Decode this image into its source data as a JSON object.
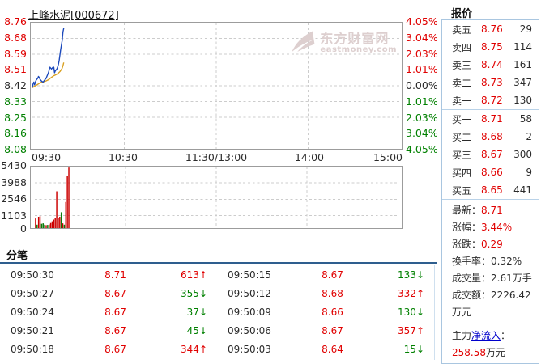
{
  "title": "上峰水泥[000672]",
  "watermark": {
    "line1": "东方财富网",
    "line2": "eastmoney.com"
  },
  "icons": {
    "up_arrow": "↑",
    "down_arrow": "↓",
    "watermark_logo": "eastmoney-swoosh"
  },
  "colors": {
    "up": "#e00000",
    "down": "#008000",
    "flat": "#2b2b2b",
    "price_line": "#1c49bb",
    "avg_line": "#d9a020",
    "bar_up": "#cc0000",
    "bar_down": "#0a7a0a",
    "panel_border": "#a9c6e0",
    "divider": "#2e5e8e",
    "link": "#0000cc",
    "watermark": "#ddcfcf"
  },
  "chart_data": [
    {
      "type": "line",
      "title": "intraday price (分时)",
      "prev_close": 8.42,
      "ylim": [
        8.08,
        8.76
      ],
      "x_total_minutes": 240,
      "x_ticks": [
        "09:30",
        "10:30",
        "11:30/13:00",
        "14:00",
        "15:00"
      ],
      "y_axis": [
        {
          "t": "8.76",
          "c": "up"
        },
        {
          "t": "8.68",
          "c": "up"
        },
        {
          "t": "8.59",
          "c": "up"
        },
        {
          "t": "8.51",
          "c": "up"
        },
        {
          "t": "8.42",
          "c": "flat"
        },
        {
          "t": "8.33",
          "c": "down"
        },
        {
          "t": "8.25",
          "c": "down"
        },
        {
          "t": "8.16",
          "c": "down"
        },
        {
          "t": "8.08",
          "c": "down"
        }
      ],
      "pct_axis": [
        {
          "t": "4.05%",
          "c": "up"
        },
        {
          "t": "3.04%",
          "c": "up"
        },
        {
          "t": "2.03%",
          "c": "up"
        },
        {
          "t": "1.01%",
          "c": "up"
        },
        {
          "t": "0.00%",
          "c": "flat"
        },
        {
          "t": "1.01%",
          "c": "down"
        },
        {
          "t": "2.03%",
          "c": "down"
        },
        {
          "t": "3.04%",
          "c": "down"
        },
        {
          "t": "4.05%",
          "c": "down"
        }
      ],
      "grid": true,
      "series": [
        {
          "name": "avg",
          "color": "#d9a020",
          "points": [
            [
              0,
              8.41
            ],
            [
              1,
              8.415
            ],
            [
              2,
              8.42
            ],
            [
              3,
              8.425
            ],
            [
              4,
              8.43
            ],
            [
              5,
              8.435
            ],
            [
              6,
              8.44
            ],
            [
              7,
              8.44
            ],
            [
              8,
              8.443
            ],
            [
              9,
              8.446
            ],
            [
              10,
              8.45
            ],
            [
              11,
              8.455
            ],
            [
              12,
              8.462
            ],
            [
              13,
              8.468
            ],
            [
              14,
              8.474
            ],
            [
              15,
              8.478
            ],
            [
              16,
              8.482
            ],
            [
              17,
              8.488
            ],
            [
              18,
              8.496
            ],
            [
              19,
              8.508
            ],
            [
              19.5,
              8.515
            ],
            [
              20,
              8.528
            ],
            [
              20.5,
              8.545
            ]
          ]
        },
        {
          "name": "price",
          "color": "#1c49bb",
          "points": [
            [
              0,
              8.41
            ],
            [
              0.5,
              8.43
            ],
            [
              1,
              8.44
            ],
            [
              1.5,
              8.425
            ],
            [
              2,
              8.44
            ],
            [
              2.5,
              8.45
            ],
            [
              3,
              8.455
            ],
            [
              3.5,
              8.46
            ],
            [
              4,
              8.47
            ],
            [
              4.5,
              8.465
            ],
            [
              5,
              8.455
            ],
            [
              5.5,
              8.45
            ],
            [
              6,
              8.445
            ],
            [
              7,
              8.44
            ],
            [
              7.5,
              8.445
            ],
            [
              8,
              8.45
            ],
            [
              8.5,
              8.455
            ],
            [
              9,
              8.46
            ],
            [
              9.5,
              8.47
            ],
            [
              10,
              8.48
            ],
            [
              10.5,
              8.49
            ],
            [
              11,
              8.505
            ],
            [
              11.5,
              8.52
            ],
            [
              12,
              8.515
            ],
            [
              12.5,
              8.51
            ],
            [
              13,
              8.515
            ],
            [
              13.5,
              8.52
            ],
            [
              14,
              8.52
            ],
            [
              14.5,
              8.49
            ],
            [
              15,
              8.5
            ],
            [
              15.5,
              8.505
            ],
            [
              16,
              8.51
            ],
            [
              16.5,
              8.52
            ],
            [
              17,
              8.535
            ],
            [
              17.5,
              8.555
            ],
            [
              18,
              8.585
            ],
            [
              18.5,
              8.615
            ],
            [
              19,
              8.64
            ],
            [
              19.5,
              8.665
            ],
            [
              20,
              8.71
            ],
            [
              20.5,
              8.73
            ]
          ]
        }
      ]
    },
    {
      "type": "bar",
      "title": "volume (手)",
      "ylim": [
        0,
        5430
      ],
      "y_ticks": [
        5430,
        3988,
        2546,
        1103,
        0
      ],
      "x_total_minutes": 240,
      "grid": true,
      "bars": [
        {
          "v": 850,
          "d": "up"
        },
        {
          "v": 300,
          "d": "down"
        },
        {
          "v": 1000,
          "d": "up"
        },
        {
          "v": 1050,
          "d": "up"
        },
        {
          "v": 380,
          "d": "down"
        },
        {
          "v": 420,
          "d": "down"
        },
        {
          "v": 300,
          "d": "down"
        },
        {
          "v": 260,
          "d": "up"
        },
        {
          "v": 280,
          "d": "down"
        },
        {
          "v": 320,
          "d": "up"
        },
        {
          "v": 450,
          "d": "up"
        },
        {
          "v": 600,
          "d": "up"
        },
        {
          "v": 750,
          "d": "up"
        },
        {
          "v": 900,
          "d": "up"
        },
        {
          "v": 3250,
          "d": "up"
        },
        {
          "v": 900,
          "d": "up"
        },
        {
          "v": 1000,
          "d": "up"
        },
        {
          "v": 1400,
          "d": "down"
        },
        {
          "v": 420,
          "d": "up"
        },
        {
          "v": 300,
          "d": "down"
        },
        {
          "v": 2300,
          "d": "up"
        },
        {
          "v": 4600,
          "d": "up"
        },
        {
          "v": 5350,
          "d": "up"
        }
      ]
    }
  ],
  "quote_panel": {
    "title": "报价",
    "asks": [
      {
        "label": "卖五",
        "price": "8.76",
        "vol": "29"
      },
      {
        "label": "卖四",
        "price": "8.75",
        "vol": "114"
      },
      {
        "label": "卖三",
        "price": "8.74",
        "vol": "161"
      },
      {
        "label": "卖二",
        "price": "8.73",
        "vol": "347"
      },
      {
        "label": "卖一",
        "price": "8.72",
        "vol": "130"
      }
    ],
    "bids": [
      {
        "label": "买一",
        "price": "8.71",
        "vol": "58"
      },
      {
        "label": "买二",
        "price": "8.68",
        "vol": "2"
      },
      {
        "label": "买三",
        "price": "8.67",
        "vol": "300"
      },
      {
        "label": "买四",
        "price": "8.66",
        "vol": "9"
      },
      {
        "label": "买五",
        "price": "8.65",
        "vol": "441"
      }
    ],
    "stats": [
      {
        "label": "最新：",
        "value": "8.71",
        "value_color": "up"
      },
      {
        "label": "涨幅：",
        "value": "3.44%",
        "value_color": "up"
      },
      {
        "label": "涨跌：",
        "value": "0.29",
        "value_color": "up"
      },
      {
        "label": "换手率：",
        "value": "0.32%",
        "value_color": "flat"
      },
      {
        "label": "成交量：",
        "value": "2.61万手",
        "value_color": "flat"
      },
      {
        "label": "成交额：",
        "value": "2226.42万元",
        "value_color": "flat"
      }
    ],
    "main_flow": {
      "prefix": "主力",
      "link": "净流入",
      "suffix": "：",
      "value": "258.58",
      "unit": "万元"
    }
  },
  "tick_panel": {
    "title": "分笔",
    "left": [
      {
        "time": "09:50:30",
        "price": "8.71",
        "vol": "613",
        "dir": "up"
      },
      {
        "time": "09:50:27",
        "price": "8.67",
        "vol": "355",
        "dir": "down"
      },
      {
        "time": "09:50:24",
        "price": "8.67",
        "vol": "37",
        "dir": "down"
      },
      {
        "time": "09:50:21",
        "price": "8.67",
        "vol": "45",
        "dir": "down"
      },
      {
        "time": "09:50:18",
        "price": "8.67",
        "vol": "344",
        "dir": "up"
      }
    ],
    "right": [
      {
        "time": "09:50:15",
        "price": "8.67",
        "vol": "133",
        "dir": "down"
      },
      {
        "time": "09:50:12",
        "price": "8.68",
        "vol": "332",
        "dir": "up"
      },
      {
        "time": "09:50:09",
        "price": "8.66",
        "vol": "130",
        "dir": "down"
      },
      {
        "time": "09:50:06",
        "price": "8.67",
        "vol": "357",
        "dir": "up"
      },
      {
        "time": "09:50:03",
        "price": "8.64",
        "vol": "15",
        "dir": "down"
      }
    ]
  }
}
